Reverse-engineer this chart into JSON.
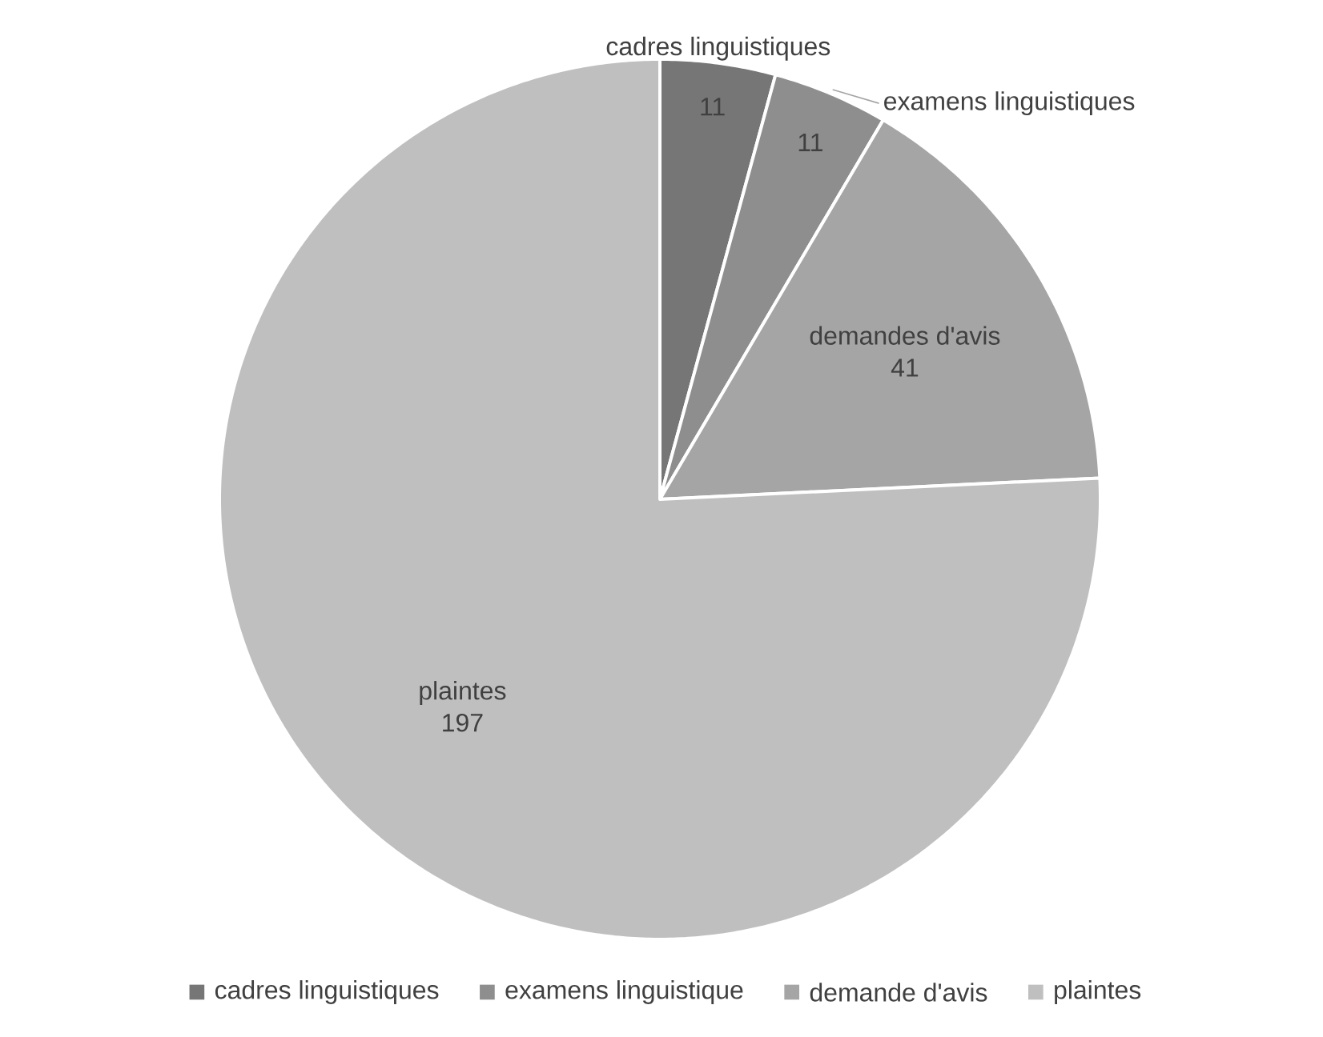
{
  "chart_data": {
    "type": "pie",
    "categories": [
      "cadres linguistiques",
      "examens linguistique",
      "demande d'avis",
      "plaintes"
    ],
    "values": [
      11,
      11,
      41,
      197
    ],
    "colors": [
      "#767676",
      "#8e8e8e",
      "#a5a5a5",
      "#bfbfbf"
    ],
    "annotations": [
      "cadres linguistiques",
      "examens linguistiques",
      "demandes d'avis",
      "plaintes"
    ],
    "data_labels": true,
    "legend": "bottom"
  }
}
